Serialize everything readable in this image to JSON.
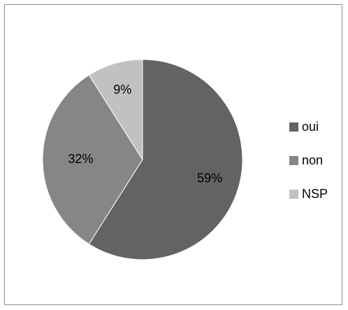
{
  "chart_data": {
    "type": "pie",
    "title": "",
    "legend_position": "right",
    "categories": [
      "oui",
      "non",
      "NSP"
    ],
    "values": [
      59,
      32,
      9
    ],
    "labels": [
      "59%",
      "32%",
      "9%"
    ],
    "colors": [
      "#636363",
      "#868686",
      "#c1c1c1"
    ]
  }
}
